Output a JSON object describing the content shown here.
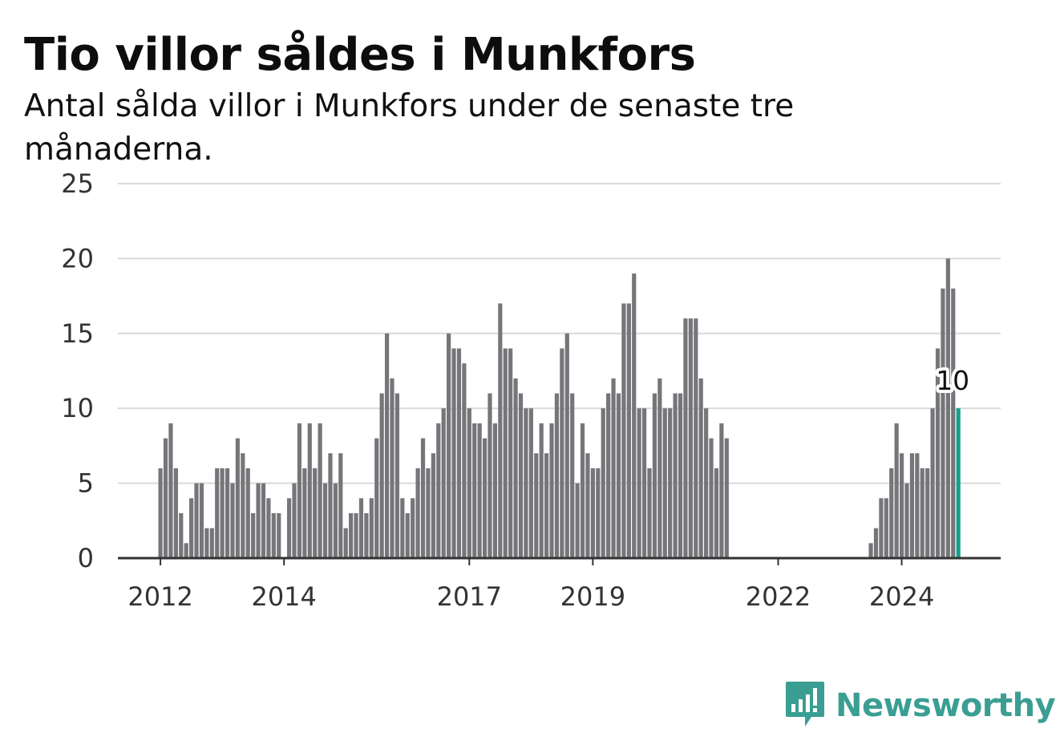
{
  "header": {
    "title": "Tio villor såldes i Munkfors",
    "subtitle": "Antal sålda villor i Munkfors under de senaste tre månaderna."
  },
  "logo": {
    "text": "Newsworthy",
    "icon": "bar-chart-speech-bubble-icon"
  },
  "colors": {
    "bar": "#76767a",
    "highlight": "#16a08c",
    "grid": "#d9d9d9",
    "axis": "#333333",
    "logo": "#3a9e93"
  },
  "chart_data": {
    "type": "bar",
    "title": "Tio villor såldes i Munkfors",
    "subtitle": "Antal sålda villor i Munkfors under de senaste tre månaderna.",
    "xlabel": "",
    "ylabel": "",
    "ylim": [
      0,
      25
    ],
    "yticks": [
      0,
      5,
      10,
      15,
      20,
      25
    ],
    "grid": true,
    "x_ticks": [
      {
        "label": "2012",
        "index": 0
      },
      {
        "label": "2014",
        "index": 24
      },
      {
        "label": "2017",
        "index": 60
      },
      {
        "label": "2019",
        "index": 84
      },
      {
        "label": "2022",
        "index": 120
      },
      {
        "label": "2024",
        "index": 144
      }
    ],
    "period": "monthly, January 2012 to October 2024",
    "values": [
      6,
      8,
      9,
      6,
      3,
      1,
      4,
      5,
      5,
      2,
      2,
      6,
      6,
      6,
      5,
      8,
      7,
      6,
      3,
      5,
      5,
      4,
      3,
      3,
      0,
      4,
      5,
      9,
      6,
      9,
      6,
      9,
      5,
      7,
      5,
      7,
      2,
      3,
      3,
      4,
      3,
      4,
      8,
      11,
      15,
      12,
      11,
      4,
      3,
      4,
      6,
      8,
      6,
      7,
      9,
      10,
      15,
      14,
      14,
      13,
      10,
      9,
      9,
      8,
      11,
      9,
      17,
      14,
      14,
      12,
      11,
      10,
      10,
      7,
      9,
      7,
      9,
      11,
      14,
      15,
      11,
      5,
      9,
      7,
      6,
      6,
      10,
      11,
      12,
      11,
      17,
      17,
      19,
      10,
      10,
      6,
      11,
      12,
      10,
      10,
      11,
      11,
      16,
      16,
      16,
      12,
      10,
      8,
      6,
      9,
      8,
      0,
      0,
      0,
      0,
      0,
      0,
      0,
      0,
      0,
      0,
      0,
      0,
      0,
      0,
      0,
      0,
      0,
      0,
      0,
      0,
      0,
      0,
      0,
      0,
      0,
      0,
      0,
      1,
      2,
      4,
      4,
      6,
      9,
      7,
      5,
      7,
      7,
      6,
      6,
      10,
      14,
      18,
      20,
      18,
      10
    ],
    "highlight_index": 155,
    "highlight_label": "10"
  }
}
